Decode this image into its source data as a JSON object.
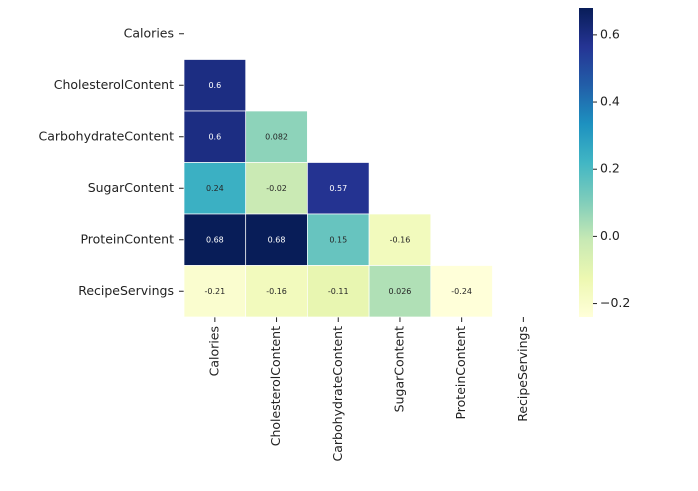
{
  "chart_data": {
    "type": "heatmap",
    "x_categories": [
      "Calories",
      "CholesterolContent",
      "CarbohydrateContent",
      "SugarContent",
      "ProteinContent",
      "RecipeServings"
    ],
    "y_categories": [
      "Calories",
      "CholesterolContent",
      "CarbohydrateContent",
      "SugarContent",
      "ProteinContent",
      "RecipeServings"
    ],
    "values": [
      [
        null,
        null,
        null,
        null,
        null,
        null
      ],
      [
        0.6,
        null,
        null,
        null,
        null,
        null
      ],
      [
        0.6,
        0.082,
        null,
        null,
        null,
        null
      ],
      [
        0.24,
        -0.02,
        0.57,
        null,
        null,
        null
      ],
      [
        0.68,
        0.68,
        0.15,
        -0.16,
        null,
        null
      ],
      [
        -0.21,
        -0.16,
        -0.11,
        0.026,
        -0.24,
        null
      ]
    ],
    "zlim": [
      -0.24,
      0.68
    ],
    "zticks": [
      {
        "value": -0.2,
        "label": "−0.2"
      },
      {
        "value": 0,
        "label": "0.0"
      },
      0.2,
      0.4,
      0.6
    ],
    "colorscale": [
      "#ffffd9",
      "#edf8b1",
      "#c7e9b4",
      "#7fcdbb",
      "#41b6c4",
      "#1d91c0",
      "#225ea8",
      "#253494",
      "#081d58"
    ]
  }
}
